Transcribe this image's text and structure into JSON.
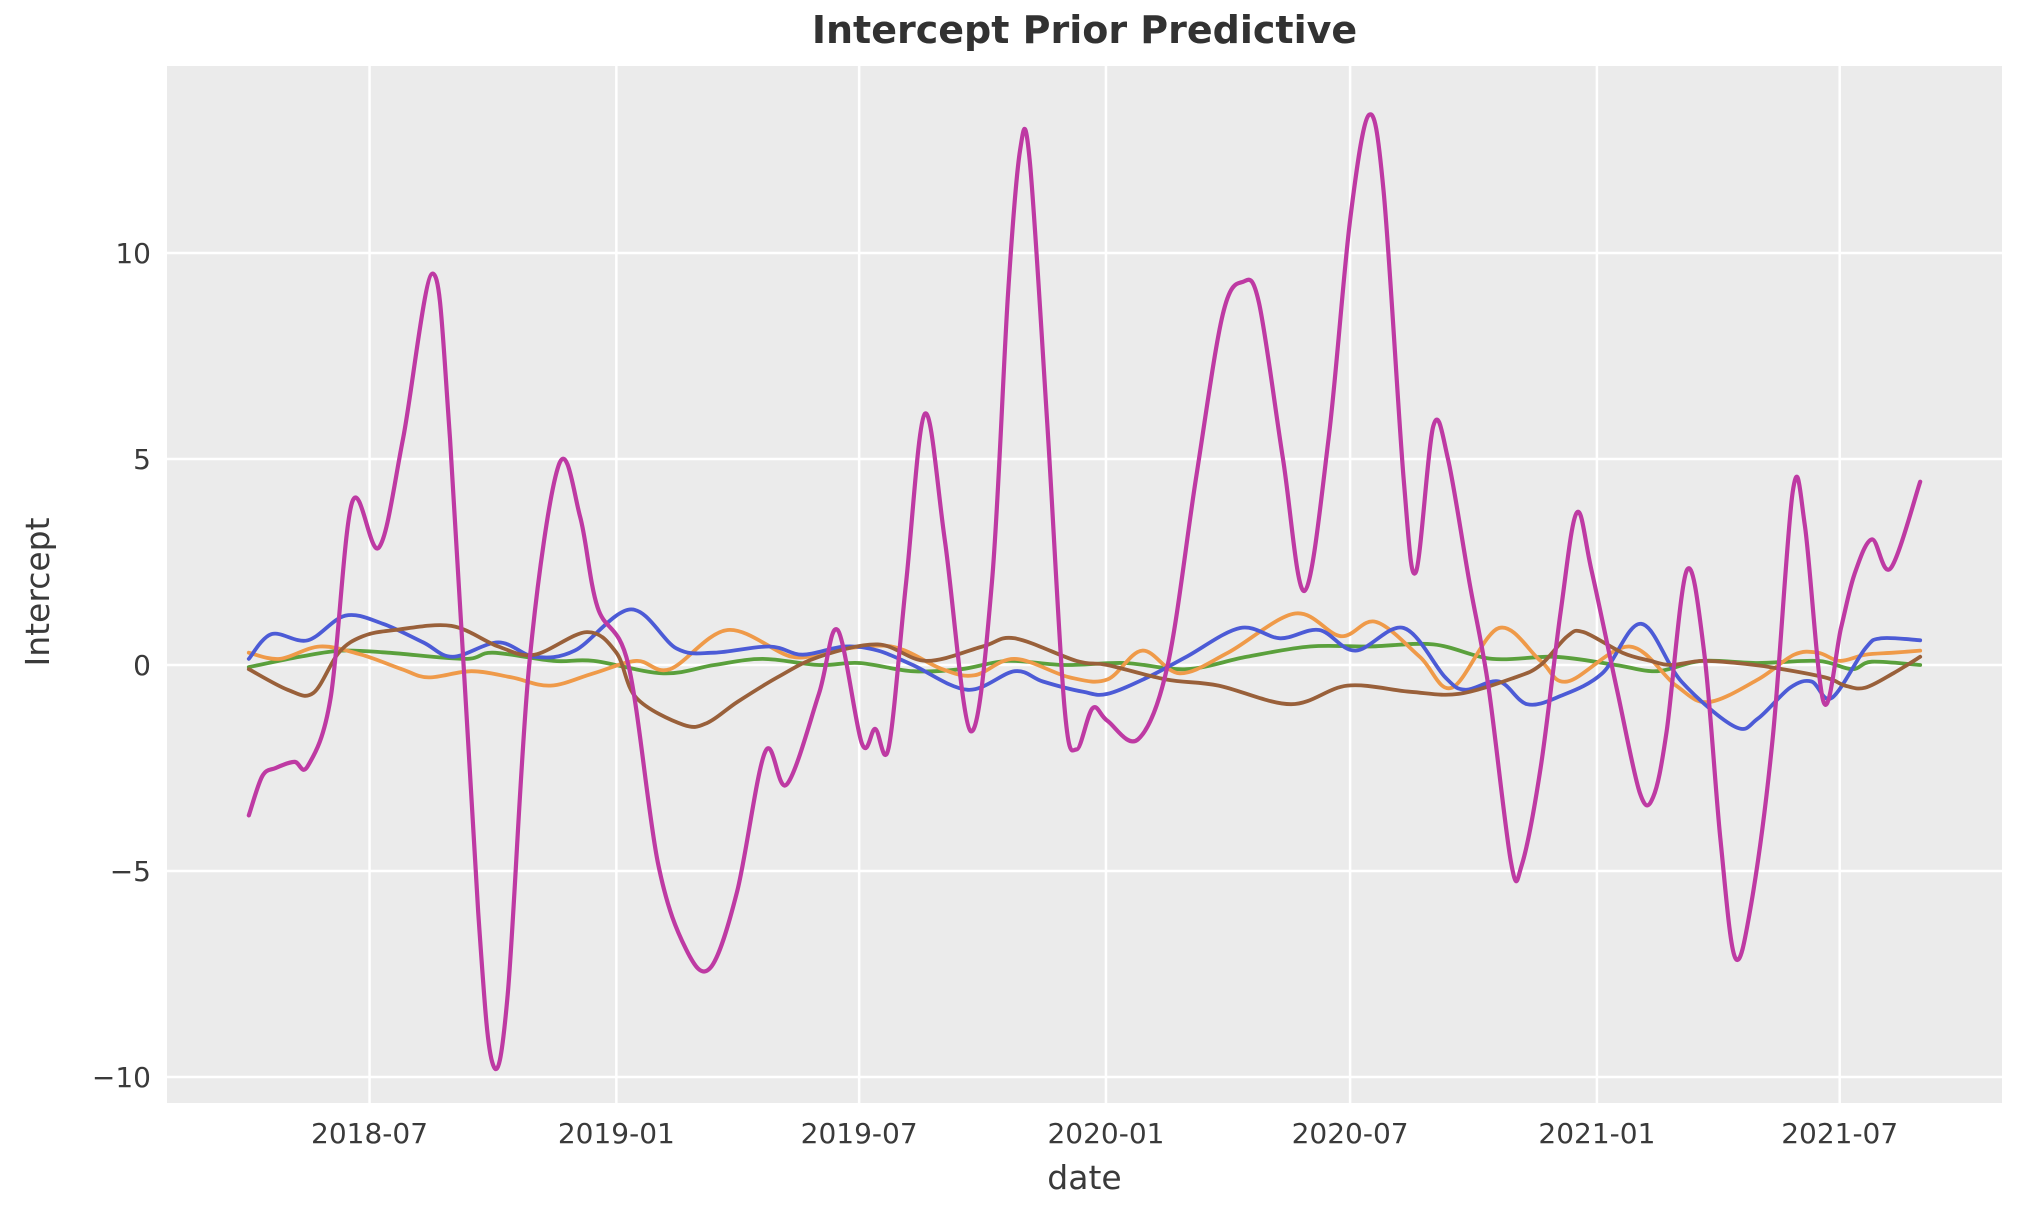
{
  "title": "Intercept Prior Predictive",
  "chart_data": {
    "type": "line",
    "title": "Intercept Prior Predictive",
    "xlabel": "date",
    "ylabel": "Intercept",
    "legend": "none",
    "grid": true,
    "colors": {
      "plot_background": "#ebebeb",
      "grid_line": "#ffffff",
      "tick_text": "#3a3a3a",
      "title_text": "#323232"
    },
    "x_axis": {
      "label": "date",
      "range": [
        "2018-01-31",
        "2021-10-30"
      ],
      "ticks": [
        {
          "date": "2018-07-01",
          "label": "2018-07"
        },
        {
          "date": "2019-01-01",
          "label": "2019-01"
        },
        {
          "date": "2019-07-01",
          "label": "2019-07"
        },
        {
          "date": "2020-01-01",
          "label": "2020-01"
        },
        {
          "date": "2020-07-01",
          "label": "2020-07"
        },
        {
          "date": "2021-01-01",
          "label": "2021-01"
        },
        {
          "date": "2021-07-01",
          "label": "2021-07"
        }
      ]
    },
    "y_axis": {
      "label": "Intercept",
      "range": [
        -10.63,
        14.54
      ],
      "ticks": [
        {
          "value": -10,
          "label": "−10"
        },
        {
          "value": -5,
          "label": "−5"
        },
        {
          "value": 0,
          "label": "0"
        },
        {
          "value": 5,
          "label": "5"
        },
        {
          "value": 10,
          "label": "10"
        }
      ]
    },
    "series": [
      {
        "name": "green-sample",
        "color": "#5aa03c",
        "width": 3.8,
        "points": [
          [
            "2018-04-02",
            -0.05
          ],
          [
            "2018-05-10",
            0.2
          ],
          [
            "2018-06-10",
            0.35
          ],
          [
            "2018-07-15",
            0.3
          ],
          [
            "2018-09-10",
            0.15
          ],
          [
            "2018-10-01",
            0.3
          ],
          [
            "2018-11-15",
            0.1
          ],
          [
            "2018-12-15",
            0.1
          ],
          [
            "2019-02-05",
            -0.2
          ],
          [
            "2019-03-15",
            0.0
          ],
          [
            "2019-04-20",
            0.15
          ],
          [
            "2019-06-01",
            0.0
          ],
          [
            "2019-07-01",
            0.05
          ],
          [
            "2019-08-10",
            -0.15
          ],
          [
            "2019-09-15",
            -0.1
          ],
          [
            "2019-10-20",
            0.1
          ],
          [
            "2019-12-01",
            0.0
          ],
          [
            "2020-01-15",
            0.05
          ],
          [
            "2020-03-01",
            -0.1
          ],
          [
            "2020-04-15",
            0.2
          ],
          [
            "2020-06-01",
            0.45
          ],
          [
            "2020-07-15",
            0.45
          ],
          [
            "2020-09-01",
            0.5
          ],
          [
            "2020-10-15",
            0.15
          ],
          [
            "2020-12-01",
            0.2
          ],
          [
            "2021-01-15",
            0.0
          ],
          [
            "2021-02-15",
            -0.15
          ],
          [
            "2021-03-20",
            0.1
          ],
          [
            "2021-05-01",
            0.05
          ],
          [
            "2021-06-15",
            0.1
          ],
          [
            "2021-07-10",
            -0.1
          ],
          [
            "2021-07-25",
            0.08
          ],
          [
            "2021-08-30",
            0.0
          ]
        ]
      },
      {
        "name": "orange-sample",
        "color": "#ef9a49",
        "width": 3.8,
        "points": [
          [
            "2018-04-02",
            0.3
          ],
          [
            "2018-04-25",
            0.15
          ],
          [
            "2018-05-25",
            0.45
          ],
          [
            "2018-06-25",
            0.25
          ],
          [
            "2018-07-25",
            -0.1
          ],
          [
            "2018-08-14",
            -0.3
          ],
          [
            "2018-09-15",
            -0.15
          ],
          [
            "2018-10-15",
            -0.3
          ],
          [
            "2018-11-13",
            -0.5
          ],
          [
            "2018-12-15",
            -0.2
          ],
          [
            "2019-01-16",
            0.1
          ],
          [
            "2019-02-10",
            -0.1
          ],
          [
            "2019-03-25",
            0.85
          ],
          [
            "2019-05-12",
            0.2
          ],
          [
            "2019-06-10",
            0.35
          ],
          [
            "2019-07-25",
            0.45
          ],
          [
            "2019-09-01",
            -0.1
          ],
          [
            "2019-09-25",
            -0.25
          ],
          [
            "2019-10-25",
            0.15
          ],
          [
            "2019-12-05",
            -0.3
          ],
          [
            "2020-01-02",
            -0.35
          ],
          [
            "2020-01-28",
            0.35
          ],
          [
            "2020-02-25",
            -0.2
          ],
          [
            "2020-04-01",
            0.3
          ],
          [
            "2020-05-21",
            1.25
          ],
          [
            "2020-06-24",
            0.7
          ],
          [
            "2020-07-20",
            1.05
          ],
          [
            "2020-08-22",
            0.2
          ],
          [
            "2020-09-15",
            -0.55
          ],
          [
            "2020-10-20",
            0.9
          ],
          [
            "2020-11-20",
            0.1
          ],
          [
            "2020-12-10",
            -0.4
          ],
          [
            "2021-01-25",
            0.45
          ],
          [
            "2021-03-01",
            -0.5
          ],
          [
            "2021-03-25",
            -0.9
          ],
          [
            "2021-05-01",
            -0.35
          ],
          [
            "2021-05-28",
            0.25
          ],
          [
            "2021-06-15",
            0.3
          ],
          [
            "2021-07-01",
            0.1
          ],
          [
            "2021-07-20",
            0.25
          ],
          [
            "2021-08-10",
            0.3
          ],
          [
            "2021-08-30",
            0.35
          ]
        ]
      },
      {
        "name": "blue-sample",
        "color": "#4c5bd6",
        "width": 3.8,
        "points": [
          [
            "2018-04-02",
            0.15
          ],
          [
            "2018-04-19",
            0.75
          ],
          [
            "2018-05-16",
            0.6
          ],
          [
            "2018-06-13",
            1.2
          ],
          [
            "2018-07-11",
            1.0
          ],
          [
            "2018-08-10",
            0.55
          ],
          [
            "2018-09-01",
            0.2
          ],
          [
            "2018-10-05",
            0.55
          ],
          [
            "2018-11-01",
            0.2
          ],
          [
            "2018-12-01",
            0.35
          ],
          [
            "2019-01-12",
            1.35
          ],
          [
            "2019-02-15",
            0.4
          ],
          [
            "2019-03-15",
            0.3
          ],
          [
            "2019-04-25",
            0.45
          ],
          [
            "2019-05-20",
            0.25
          ],
          [
            "2019-06-20",
            0.45
          ],
          [
            "2019-07-15",
            0.35
          ],
          [
            "2019-08-10",
            0.0
          ],
          [
            "2019-09-20",
            -0.6
          ],
          [
            "2019-10-25",
            -0.15
          ],
          [
            "2019-11-15",
            -0.4
          ],
          [
            "2019-12-15",
            -0.65
          ],
          [
            "2020-01-02",
            -0.7
          ],
          [
            "2020-02-01",
            -0.3
          ],
          [
            "2020-03-01",
            0.2
          ],
          [
            "2020-04-10",
            0.9
          ],
          [
            "2020-05-10",
            0.65
          ],
          [
            "2020-06-08",
            0.85
          ],
          [
            "2020-07-05",
            0.35
          ],
          [
            "2020-08-10",
            0.9
          ],
          [
            "2020-09-10",
            -0.3
          ],
          [
            "2020-09-25",
            -0.6
          ],
          [
            "2020-10-20",
            -0.4
          ],
          [
            "2020-11-10",
            -0.95
          ],
          [
            "2020-12-05",
            -0.75
          ],
          [
            "2021-01-05",
            -0.2
          ],
          [
            "2021-02-03",
            1.0
          ],
          [
            "2021-03-05",
            -0.4
          ],
          [
            "2021-04-14",
            -1.5
          ],
          [
            "2021-05-01",
            -1.3
          ],
          [
            "2021-05-25",
            -0.55
          ],
          [
            "2021-06-10",
            -0.4
          ],
          [
            "2021-06-25",
            -0.8
          ],
          [
            "2021-07-20",
            0.4
          ],
          [
            "2021-08-01",
            0.65
          ],
          [
            "2021-08-30",
            0.6
          ]
        ]
      },
      {
        "name": "brown-sample",
        "color": "#99603a",
        "width": 3.8,
        "points": [
          [
            "2018-04-02",
            -0.1
          ],
          [
            "2018-05-01",
            -0.6
          ],
          [
            "2018-05-20",
            -0.68
          ],
          [
            "2018-06-08",
            0.3
          ],
          [
            "2018-06-26",
            0.7
          ],
          [
            "2018-07-20",
            0.85
          ],
          [
            "2018-08-31",
            0.95
          ],
          [
            "2018-10-05",
            0.45
          ],
          [
            "2018-11-01",
            0.25
          ],
          [
            "2018-12-10",
            0.8
          ],
          [
            "2019-01-01",
            0.3
          ],
          [
            "2019-01-16",
            -0.8
          ],
          [
            "2019-02-20",
            -1.45
          ],
          [
            "2019-03-10",
            -1.4
          ],
          [
            "2019-04-01",
            -0.9
          ],
          [
            "2019-05-01",
            -0.3
          ],
          [
            "2019-06-01",
            0.2
          ],
          [
            "2019-07-15",
            0.5
          ],
          [
            "2019-08-20",
            0.1
          ],
          [
            "2019-10-01",
            0.45
          ],
          [
            "2019-10-25",
            0.65
          ],
          [
            "2019-12-10",
            0.1
          ],
          [
            "2020-01-02",
            0.0
          ],
          [
            "2020-02-15",
            -0.35
          ],
          [
            "2020-03-25",
            -0.5
          ],
          [
            "2020-05-18",
            -0.95
          ],
          [
            "2020-06-29",
            -0.5
          ],
          [
            "2020-08-15",
            -0.65
          ],
          [
            "2020-09-20",
            -0.7
          ],
          [
            "2020-11-01",
            -0.3
          ],
          [
            "2020-11-20",
            0.0
          ],
          [
            "2020-12-10",
            0.7
          ],
          [
            "2020-12-22",
            0.8
          ],
          [
            "2021-01-20",
            0.3
          ],
          [
            "2021-02-10",
            0.1
          ],
          [
            "2021-02-25",
            0.0
          ],
          [
            "2021-03-20",
            0.1
          ],
          [
            "2021-04-15",
            0.05
          ],
          [
            "2021-05-10",
            -0.05
          ],
          [
            "2021-06-20",
            -0.3
          ],
          [
            "2021-07-05",
            -0.5
          ],
          [
            "2021-07-20",
            -0.55
          ],
          [
            "2021-08-10",
            -0.2
          ],
          [
            "2021-08-30",
            0.2
          ]
        ]
      },
      {
        "name": "magenta-sample",
        "color": "#be3aa3",
        "width": 4.2,
        "points": [
          [
            "2018-04-02",
            -3.65
          ],
          [
            "2018-04-12",
            -2.7
          ],
          [
            "2018-04-22",
            -2.5
          ],
          [
            "2018-05-06",
            -2.35
          ],
          [
            "2018-05-16",
            -2.45
          ],
          [
            "2018-06-02",
            -0.8
          ],
          [
            "2018-06-18",
            3.95
          ],
          [
            "2018-07-08",
            2.85
          ],
          [
            "2018-07-26",
            5.5
          ],
          [
            "2018-08-17",
            9.5
          ],
          [
            "2018-08-30",
            5.5
          ],
          [
            "2018-09-20",
            -6.0
          ],
          [
            "2018-10-01",
            -9.7
          ],
          [
            "2018-10-12",
            -8.0
          ],
          [
            "2018-10-28",
            0.0
          ],
          [
            "2018-11-19",
            4.85
          ],
          [
            "2018-12-05",
            3.6
          ],
          [
            "2018-12-18",
            1.4
          ],
          [
            "2019-01-10",
            0.0
          ],
          [
            "2019-02-01",
            -4.8
          ],
          [
            "2019-02-22",
            -6.9
          ],
          [
            "2019-03-12",
            -7.35
          ],
          [
            "2019-04-01",
            -5.5
          ],
          [
            "2019-04-22",
            -2.1
          ],
          [
            "2019-05-08",
            -2.9
          ],
          [
            "2019-06-01",
            -0.7
          ],
          [
            "2019-06-15",
            0.85
          ],
          [
            "2019-07-03",
            -1.9
          ],
          [
            "2019-07-13",
            -1.55
          ],
          [
            "2019-07-23",
            -2.0
          ],
          [
            "2019-08-05",
            2.0
          ],
          [
            "2019-08-19",
            6.1
          ],
          [
            "2019-09-03",
            3.0
          ],
          [
            "2019-09-22",
            -1.6
          ],
          [
            "2019-10-08",
            2.0
          ],
          [
            "2019-10-20",
            9.0
          ],
          [
            "2019-10-29",
            12.5
          ],
          [
            "2019-11-05",
            12.3
          ],
          [
            "2019-11-18",
            6.0
          ],
          [
            "2019-12-01",
            -1.0
          ],
          [
            "2019-12-10",
            -2.05
          ],
          [
            "2019-12-22",
            -1.05
          ],
          [
            "2020-01-02",
            -1.35
          ],
          [
            "2020-01-25",
            -1.8
          ],
          [
            "2020-02-16",
            0.0
          ],
          [
            "2020-03-08",
            4.5
          ],
          [
            "2020-03-28",
            8.5
          ],
          [
            "2020-04-12",
            9.3
          ],
          [
            "2020-04-24",
            8.8
          ],
          [
            "2020-05-12",
            5.0
          ],
          [
            "2020-05-28",
            1.8
          ],
          [
            "2020-06-15",
            5.5
          ],
          [
            "2020-07-01",
            10.8
          ],
          [
            "2020-07-15",
            13.35
          ],
          [
            "2020-07-26",
            11.5
          ],
          [
            "2020-08-10",
            4.5
          ],
          [
            "2020-08-19",
            2.25
          ],
          [
            "2020-09-01",
            5.8
          ],
          [
            "2020-09-12",
            5.0
          ],
          [
            "2020-09-28",
            2.0
          ],
          [
            "2020-10-12",
            -0.5
          ],
          [
            "2020-10-29",
            -4.8
          ],
          [
            "2020-11-06",
            -4.85
          ],
          [
            "2020-11-20",
            -2.5
          ],
          [
            "2020-12-05",
            1.3
          ],
          [
            "2020-12-17",
            3.7
          ],
          [
            "2020-12-28",
            2.3
          ],
          [
            "2021-01-16",
            -0.6
          ],
          [
            "2021-02-02",
            -3.1
          ],
          [
            "2021-02-12",
            -3.2
          ],
          [
            "2021-02-22",
            -1.6
          ],
          [
            "2021-03-09",
            2.3
          ],
          [
            "2021-03-22",
            0.3
          ],
          [
            "2021-04-03",
            -4.2
          ],
          [
            "2021-04-14",
            -7.1
          ],
          [
            "2021-04-26",
            -5.8
          ],
          [
            "2021-05-12",
            -1.8
          ],
          [
            "2021-05-27",
            4.2
          ],
          [
            "2021-06-05",
            3.4
          ],
          [
            "2021-06-19",
            -0.9
          ],
          [
            "2021-07-02",
            0.9
          ],
          [
            "2021-07-12",
            2.2
          ],
          [
            "2021-07-25",
            3.05
          ],
          [
            "2021-08-08",
            2.35
          ],
          [
            "2021-08-30",
            4.45
          ]
        ]
      }
    ]
  }
}
